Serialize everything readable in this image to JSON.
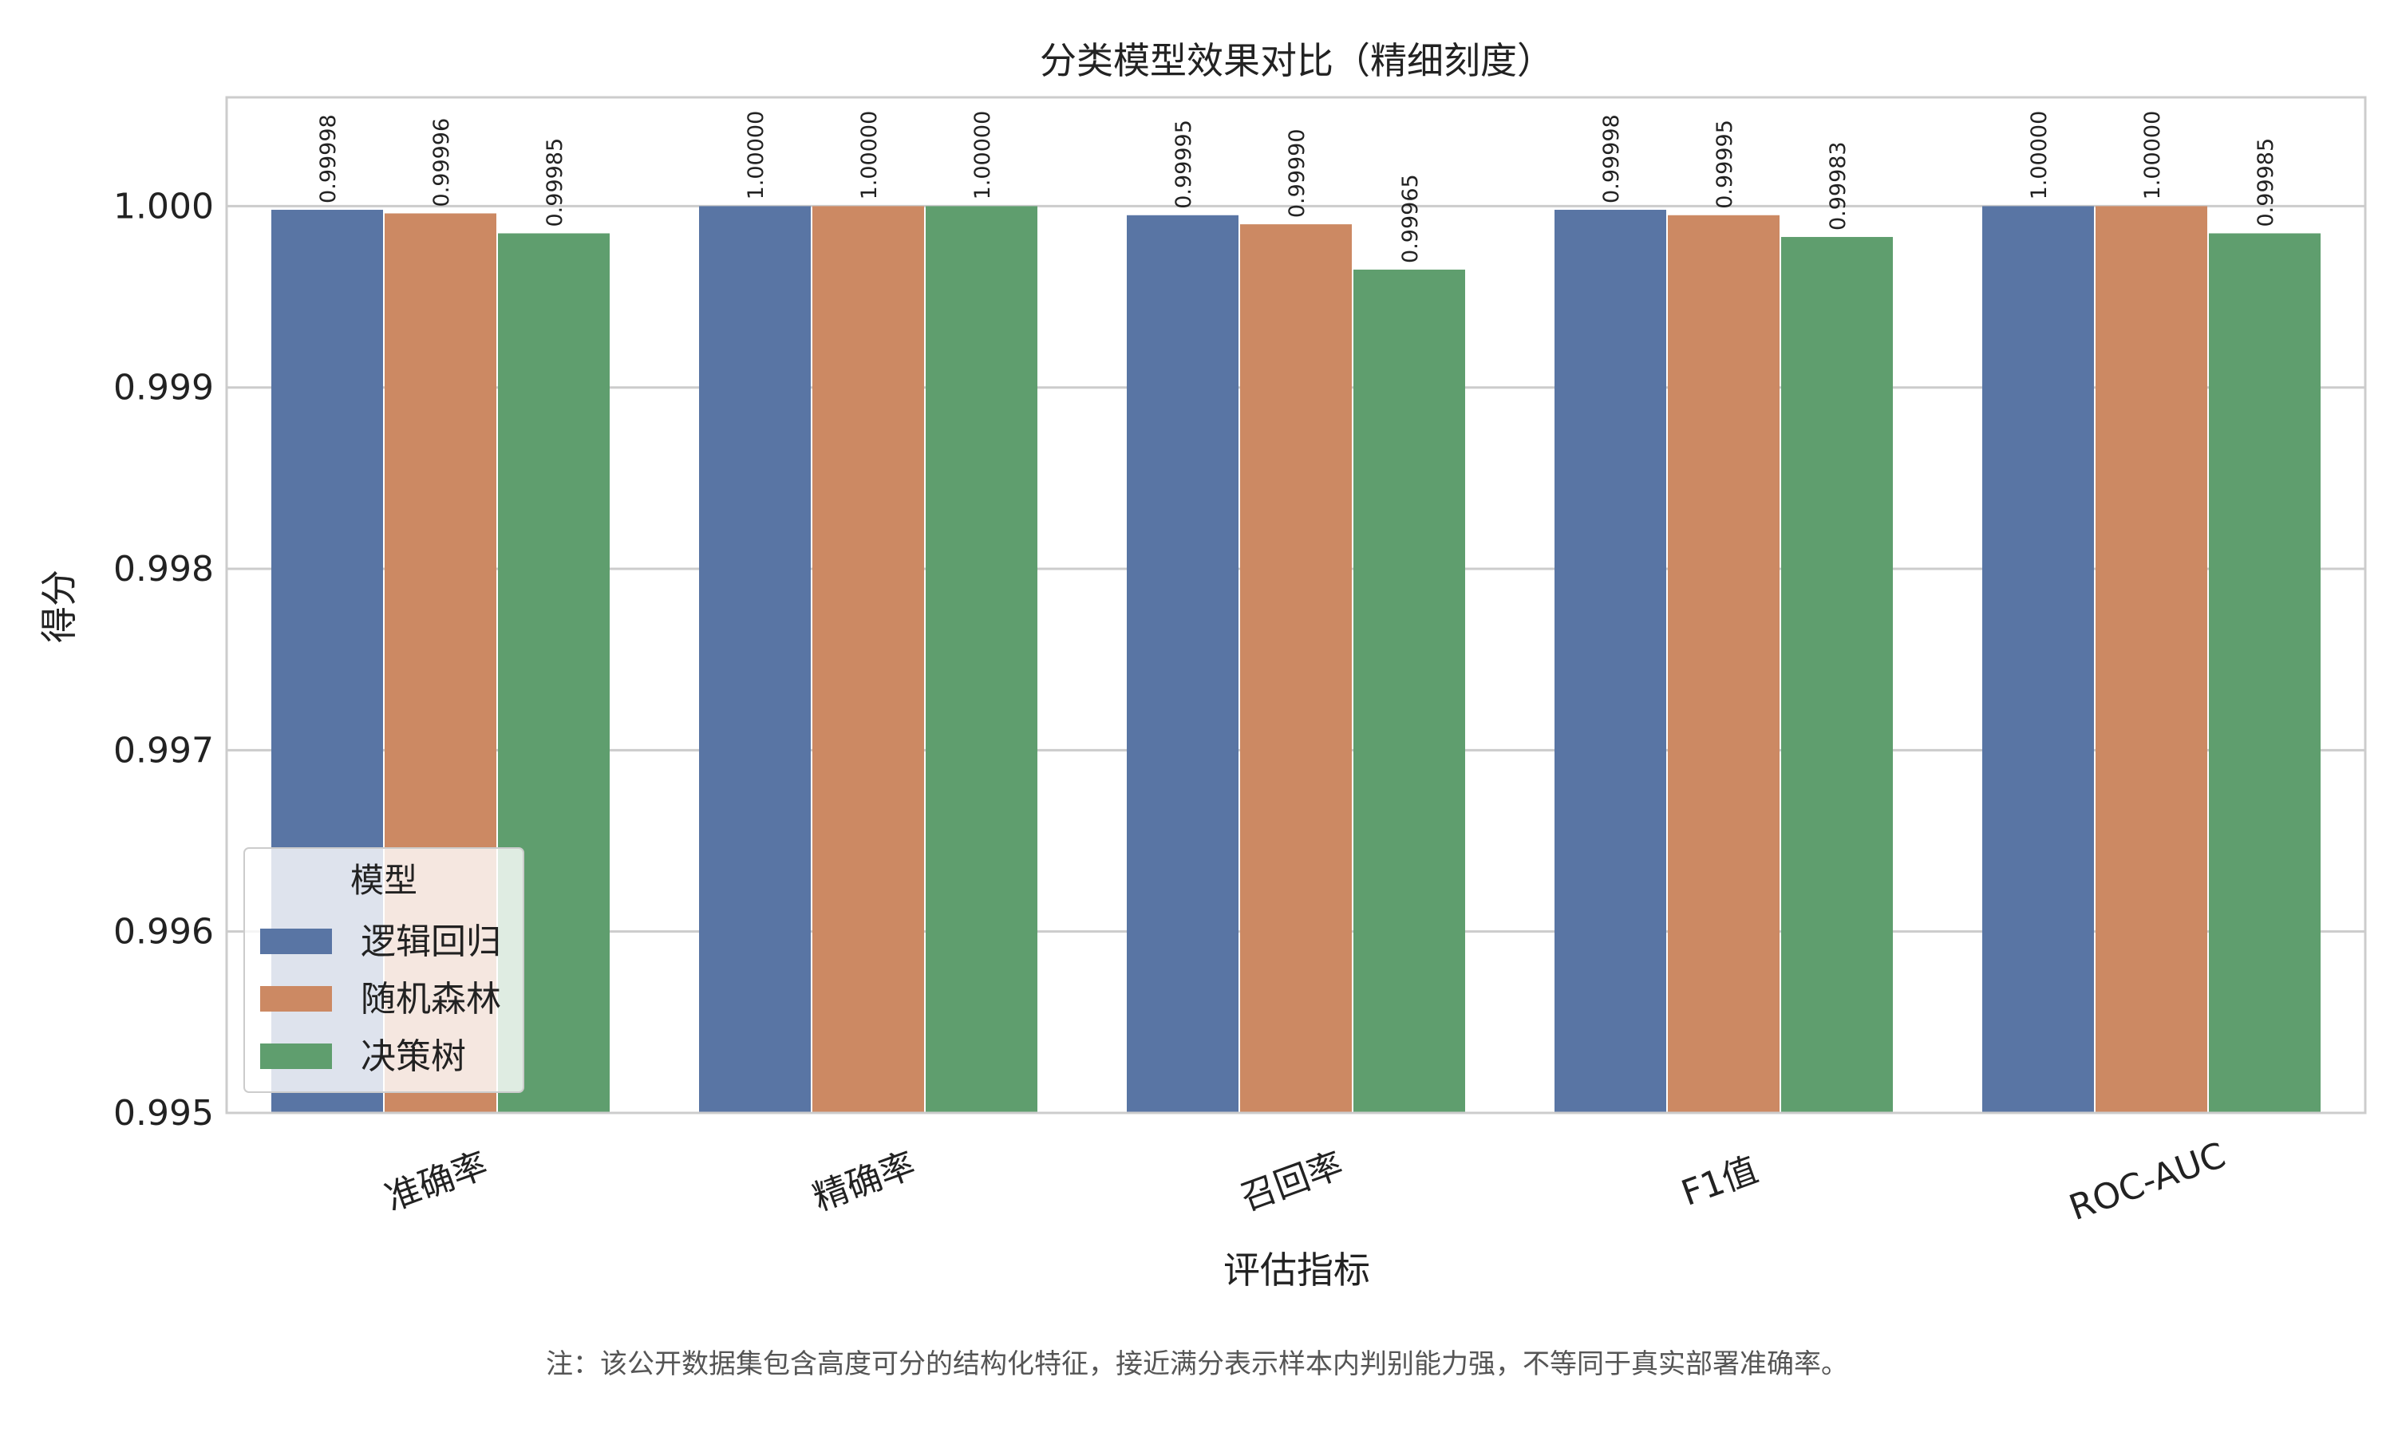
{
  "chart_data": {
    "type": "bar",
    "title": "分类模型效果对比（精细刻度）",
    "xlabel": "评估指标",
    "ylabel": "得分",
    "categories": [
      "准确率",
      "精确率",
      "召回率",
      "F1值",
      "ROC-AUC"
    ],
    "series": [
      {
        "name": "逻辑回归",
        "color": "#5975a4",
        "values": [
          0.99998,
          1.0,
          0.99995,
          0.99998,
          1.0
        ]
      },
      {
        "name": "随机森林",
        "color": "#cc8963",
        "values": [
          0.99996,
          1.0,
          0.9999,
          0.99995,
          1.0
        ]
      },
      {
        "name": "决策树",
        "color": "#5f9e6e",
        "values": [
          0.99985,
          1.0,
          0.99965,
          0.99983,
          0.99985
        ]
      }
    ],
    "data_labels": [
      [
        "0.99998",
        "1.00000",
        "0.99995",
        "0.99998",
        "1.00000"
      ],
      [
        "0.99996",
        "1.00000",
        "0.99990",
        "0.99995",
        "1.00000"
      ],
      [
        "0.99985",
        "1.00000",
        "0.99965",
        "0.99983",
        "0.99985"
      ]
    ],
    "ylim": [
      0.995,
      1.0006
    ],
    "yticks": [
      0.995,
      0.996,
      0.997,
      0.998,
      0.999,
      1.0
    ],
    "ytick_labels": [
      "0.995",
      "0.996",
      "0.997",
      "0.998",
      "0.999",
      "1.000"
    ],
    "grid": "horizontal",
    "legend": {
      "title": "模型",
      "placement": "bottom-left"
    }
  },
  "footnote": "注：该公开数据集包含高度可分的结构化特征，接近满分表示样本内判别能力强，不等同于真实部署准确率。"
}
